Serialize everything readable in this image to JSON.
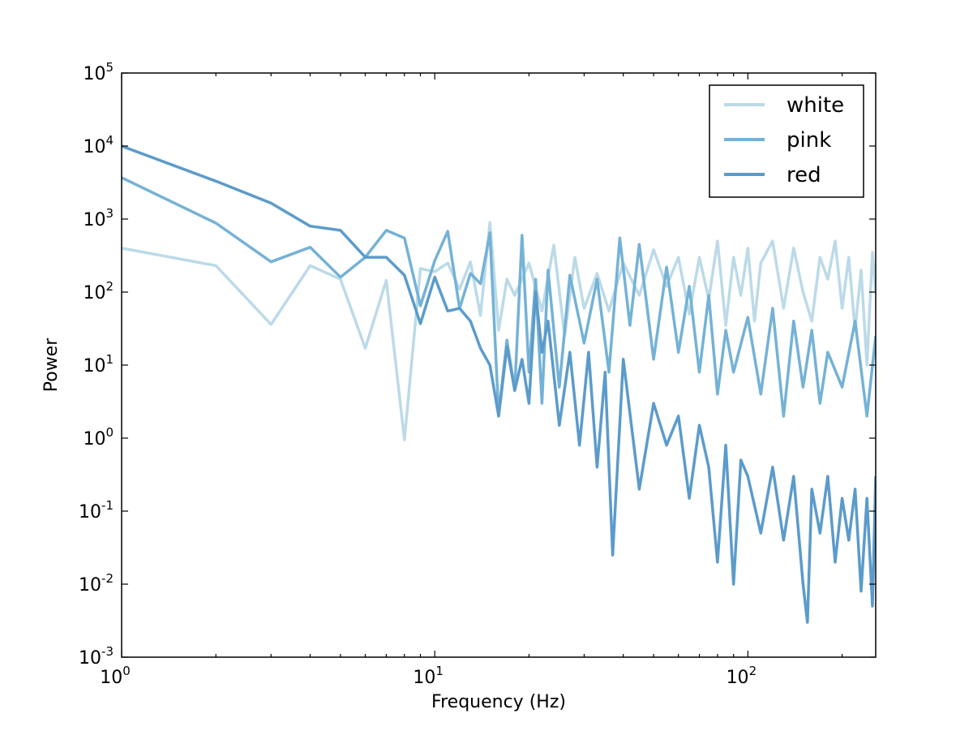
{
  "chart_data": {
    "type": "line",
    "title": "",
    "xlabel": "Frequency (Hz)",
    "ylabel": "Power",
    "xscale": "log",
    "yscale": "log",
    "xlim": [
      1,
      256
    ],
    "ylim": [
      0.001,
      100000
    ],
    "x_ticks": [
      {
        "value": 1,
        "base": "10",
        "exp": "0"
      },
      {
        "value": 10,
        "base": "10",
        "exp": "1"
      },
      {
        "value": 100,
        "base": "10",
        "exp": "2"
      }
    ],
    "y_ticks": [
      {
        "value": 0.001,
        "base": "10",
        "exp": "-3"
      },
      {
        "value": 0.01,
        "base": "10",
        "exp": "-2"
      },
      {
        "value": 0.1,
        "base": "10",
        "exp": "-1"
      },
      {
        "value": 1,
        "base": "10",
        "exp": "0"
      },
      {
        "value": 10,
        "base": "10",
        "exp": "1"
      },
      {
        "value": 100,
        "base": "10",
        "exp": "2"
      },
      {
        "value": 1000,
        "base": "10",
        "exp": "3"
      },
      {
        "value": 10000,
        "base": "10",
        "exp": "4"
      },
      {
        "value": 100000,
        "base": "10",
        "exp": "5"
      }
    ],
    "grid": false,
    "legend_position": "top-right",
    "series": [
      {
        "name": "white",
        "color": "#bcdae8",
        "points": [
          [
            1,
            400
          ],
          [
            2,
            230
          ],
          [
            3,
            36
          ],
          [
            4,
            230
          ],
          [
            5,
            150
          ],
          [
            6,
            17
          ],
          [
            7,
            145
          ],
          [
            8,
            0.95
          ],
          [
            9,
            210
          ],
          [
            10,
            190
          ],
          [
            11,
            250
          ],
          [
            12,
            110
          ],
          [
            13,
            260
          ],
          [
            14,
            48
          ],
          [
            15,
            900
          ],
          [
            16,
            30
          ],
          [
            17,
            150
          ],
          [
            18,
            90
          ],
          [
            20,
            250
          ],
          [
            22,
            55
          ],
          [
            24,
            440
          ],
          [
            26,
            25
          ],
          [
            28,
            300
          ],
          [
            30,
            60
          ],
          [
            33,
            180
          ],
          [
            36,
            55
          ],
          [
            40,
            250
          ],
          [
            45,
            90
          ],
          [
            50,
            380
          ],
          [
            55,
            120
          ],
          [
            60,
            300
          ],
          [
            65,
            50
          ],
          [
            70,
            300
          ],
          [
            75,
            80
          ],
          [
            80,
            500
          ],
          [
            85,
            35
          ],
          [
            90,
            300
          ],
          [
            95,
            90
          ],
          [
            100,
            400
          ],
          [
            105,
            40
          ],
          [
            110,
            250
          ],
          [
            120,
            500
          ],
          [
            130,
            60
          ],
          [
            140,
            400
          ],
          [
            150,
            100
          ],
          [
            160,
            40
          ],
          [
            170,
            300
          ],
          [
            180,
            150
          ],
          [
            190,
            500
          ],
          [
            200,
            60
          ],
          [
            210,
            300
          ],
          [
            220,
            30
          ],
          [
            230,
            200
          ],
          [
            240,
            10
          ],
          [
            250,
            350
          ],
          [
            256,
            100
          ]
        ]
      },
      {
        "name": "pink",
        "color": "#74b2d6",
        "points": [
          [
            1,
            3700
          ],
          [
            2,
            880
          ],
          [
            3,
            260
          ],
          [
            4,
            410
          ],
          [
            5,
            160
          ],
          [
            6,
            300
          ],
          [
            7,
            700
          ],
          [
            8,
            550
          ],
          [
            9,
            65
          ],
          [
            10,
            270
          ],
          [
            11,
            680
          ],
          [
            12,
            60
          ],
          [
            13,
            180
          ],
          [
            14,
            130
          ],
          [
            15,
            650
          ],
          [
            16,
            2.1
          ],
          [
            17,
            22
          ],
          [
            18,
            4.5
          ],
          [
            19,
            600
          ],
          [
            20,
            8
          ],
          [
            21,
            150
          ],
          [
            22,
            3
          ],
          [
            23,
            200
          ],
          [
            25,
            5
          ],
          [
            27,
            170
          ],
          [
            30,
            20
          ],
          [
            33,
            150
          ],
          [
            36,
            8
          ],
          [
            39,
            550
          ],
          [
            42,
            35
          ],
          [
            45,
            450
          ],
          [
            50,
            12
          ],
          [
            55,
            220
          ],
          [
            60,
            15
          ],
          [
            65,
            120
          ],
          [
            70,
            8
          ],
          [
            75,
            90
          ],
          [
            80,
            4
          ],
          [
            85,
            30
          ],
          [
            90,
            8
          ],
          [
            100,
            45
          ],
          [
            110,
            4
          ],
          [
            120,
            60
          ],
          [
            130,
            2
          ],
          [
            140,
            40
          ],
          [
            150,
            5
          ],
          [
            160,
            30
          ],
          [
            170,
            3
          ],
          [
            180,
            15
          ],
          [
            200,
            5
          ],
          [
            220,
            40
          ],
          [
            240,
            2
          ],
          [
            256,
            25
          ]
        ]
      },
      {
        "name": "red",
        "color": "#5b9bcb",
        "points": [
          [
            1,
            10000
          ],
          [
            2,
            3300
          ],
          [
            3,
            1650
          ],
          [
            4,
            800
          ],
          [
            5,
            700
          ],
          [
            6,
            300
          ],
          [
            7,
            300
          ],
          [
            8,
            170
          ],
          [
            9,
            37
          ],
          [
            10,
            160
          ],
          [
            11,
            55
          ],
          [
            12,
            60
          ],
          [
            13,
            40
          ],
          [
            14,
            17
          ],
          [
            15,
            10
          ],
          [
            16,
            2
          ],
          [
            17,
            18
          ],
          [
            18,
            4.5
          ],
          [
            19,
            12
          ],
          [
            20,
            3
          ],
          [
            21,
            100
          ],
          [
            22,
            15
          ],
          [
            23,
            40
          ],
          [
            25,
            1.5
          ],
          [
            27,
            15
          ],
          [
            29,
            0.8
          ],
          [
            31,
            15
          ],
          [
            33,
            0.4
          ],
          [
            35,
            8
          ],
          [
            37,
            0.025
          ],
          [
            40,
            12
          ],
          [
            45,
            0.2
          ],
          [
            50,
            3
          ],
          [
            55,
            0.8
          ],
          [
            60,
            2
          ],
          [
            65,
            0.15
          ],
          [
            70,
            1.5
          ],
          [
            75,
            0.4
          ],
          [
            80,
            0.02
          ],
          [
            85,
            0.8
          ],
          [
            90,
            0.01
          ],
          [
            95,
            0.5
          ],
          [
            100,
            0.3
          ],
          [
            110,
            0.05
          ],
          [
            120,
            0.4
          ],
          [
            130,
            0.04
          ],
          [
            140,
            0.3
          ],
          [
            150,
            0.01
          ],
          [
            155,
            0.003
          ],
          [
            160,
            0.2
          ],
          [
            170,
            0.05
          ],
          [
            180,
            0.3
          ],
          [
            190,
            0.02
          ],
          [
            200,
            0.15
          ],
          [
            210,
            0.04
          ],
          [
            220,
            0.2
          ],
          [
            230,
            0.008
          ],
          [
            240,
            0.15
          ],
          [
            250,
            0.005
          ],
          [
            256,
            0.3
          ]
        ]
      }
    ]
  }
}
